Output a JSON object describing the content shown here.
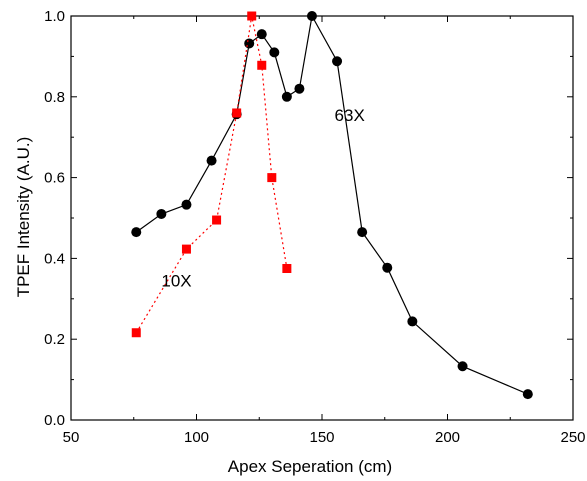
{
  "chart_data": {
    "type": "line",
    "xlabel": "Apex Seperation (cm)",
    "ylabel": "TPEF Intensity (A.U.)",
    "xlim": [
      50,
      250
    ],
    "ylim": [
      0.0,
      1.0
    ],
    "x_ticks": [
      50,
      100,
      150,
      200,
      250
    ],
    "y_ticks": [
      0.0,
      0.2,
      0.4,
      0.6,
      0.8,
      1.0
    ],
    "x_tick_labels": [
      "50",
      "100",
      "150",
      "200",
      "250"
    ],
    "y_tick_labels": [
      "0.0",
      "0.2",
      "0.4",
      "0.6",
      "0.8",
      "1.0"
    ],
    "grid": false,
    "legend": "none",
    "series": [
      {
        "name": "63X",
        "color": "#000000",
        "marker": "circle",
        "line_style": "solid",
        "x": [
          76,
          86,
          96,
          106,
          116,
          121,
          126,
          131,
          136,
          141,
          146,
          156,
          166,
          176,
          186,
          206,
          232
        ],
        "y": [
          0.465,
          0.51,
          0.533,
          0.642,
          0.757,
          0.932,
          0.955,
          0.91,
          0.8,
          0.82,
          1.0,
          0.888,
          0.465,
          0.377,
          0.244,
          0.133,
          0.064
        ]
      },
      {
        "name": "10X",
        "color": "#ff0000",
        "marker": "square",
        "line_style": "dotted",
        "x": [
          76,
          96,
          108,
          116,
          122,
          126,
          130,
          136
        ],
        "y": [
          0.216,
          0.423,
          0.495,
          0.76,
          1.0,
          0.878,
          0.6,
          0.375
        ]
      }
    ],
    "annotations": [
      {
        "text": "63X",
        "x": 155,
        "y": 0.74
      },
      {
        "text": "10X",
        "x": 86,
        "y": 0.33
      }
    ]
  }
}
